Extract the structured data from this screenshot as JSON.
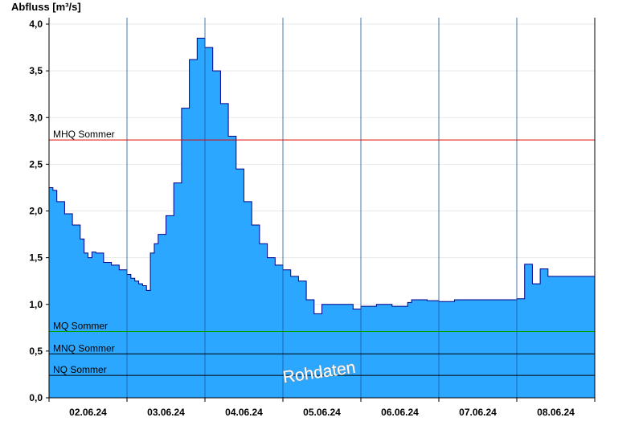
{
  "chart_data": {
    "type": "area",
    "title": "",
    "ylabel": "Abfluss [m³/s]",
    "xlabel": "",
    "ylim": [
      0,
      4.0
    ],
    "xlim_days": [
      0,
      7
    ],
    "yticks": [
      "0,0",
      "0,5",
      "1,0",
      "1,5",
      "2,0",
      "2,5",
      "3,0",
      "3,5",
      "4,0"
    ],
    "ytick_values": [
      0,
      0.5,
      1.0,
      1.5,
      2.0,
      2.5,
      3.0,
      3.5,
      4.0
    ],
    "xticks": [
      "02.06.24",
      "03.06.24",
      "04.06.24",
      "05.06.24",
      "06.06.24",
      "07.06.24",
      "08.06.24"
    ],
    "grid": "horizontal",
    "fill_color": "#2ca7ff",
    "line_color": "#00008b",
    "series": [
      {
        "x": [
          0,
          0.05,
          0.1,
          0.2,
          0.3,
          0.4,
          0.45,
          0.5,
          0.55,
          0.6,
          0.7,
          0.8,
          0.9,
          1.0,
          1.05,
          1.1,
          1.15,
          1.2,
          1.25,
          1.3,
          1.35,
          1.4,
          1.5,
          1.6,
          1.7,
          1.8,
          1.9,
          2.0,
          2.1,
          2.2,
          2.3,
          2.4,
          2.5,
          2.6,
          2.7,
          2.8,
          2.9,
          3.0,
          3.1,
          3.2,
          3.3,
          3.4,
          3.5,
          3.6,
          3.7,
          3.8,
          3.9,
          4.0,
          4.2,
          4.4,
          4.6,
          4.65,
          4.7,
          4.75,
          4.8,
          4.85,
          5.0,
          5.2,
          5.4,
          5.6,
          5.8,
          6.0,
          6.1,
          6.2,
          6.3,
          6.4,
          6.45,
          6.5,
          6.55,
          6.6,
          6.7,
          6.8,
          6.9,
          7.0
        ],
        "y": [
          2.25,
          2.22,
          2.1,
          1.97,
          1.85,
          1.7,
          1.55,
          1.5,
          1.56,
          1.55,
          1.45,
          1.42,
          1.37,
          1.32,
          1.28,
          1.25,
          1.22,
          1.2,
          1.15,
          1.55,
          1.65,
          1.75,
          1.95,
          2.3,
          3.1,
          3.62,
          3.85,
          3.75,
          3.5,
          3.15,
          2.8,
          2.45,
          2.1,
          1.85,
          1.65,
          1.5,
          1.42,
          1.37,
          1.3,
          1.25,
          1.05,
          0.9,
          1.0,
          1.0,
          1.0,
          1.0,
          0.95,
          0.98,
          1.0,
          0.98,
          1.02,
          1.05,
          1.05,
          1.05,
          1.05,
          1.04,
          1.03,
          1.05,
          1.05,
          1.05,
          1.05,
          1.06,
          1.43,
          1.22,
          1.38,
          1.3,
          1.3,
          1.3,
          1.3,
          1.3,
          1.3,
          1.3,
          1.3,
          1.3
        ]
      }
    ],
    "reference_lines": [
      {
        "label": "MHQ Sommer",
        "value": 2.76,
        "color": "#e00000"
      },
      {
        "label": "MQ Sommer",
        "value": 0.71,
        "color": "#00a000"
      },
      {
        "label": "MNQ Sommer",
        "value": 0.47,
        "color": "#000000"
      },
      {
        "label": "NQ Sommer",
        "value": 0.24,
        "color": "#000000"
      }
    ],
    "watermark": "Rohdaten"
  }
}
